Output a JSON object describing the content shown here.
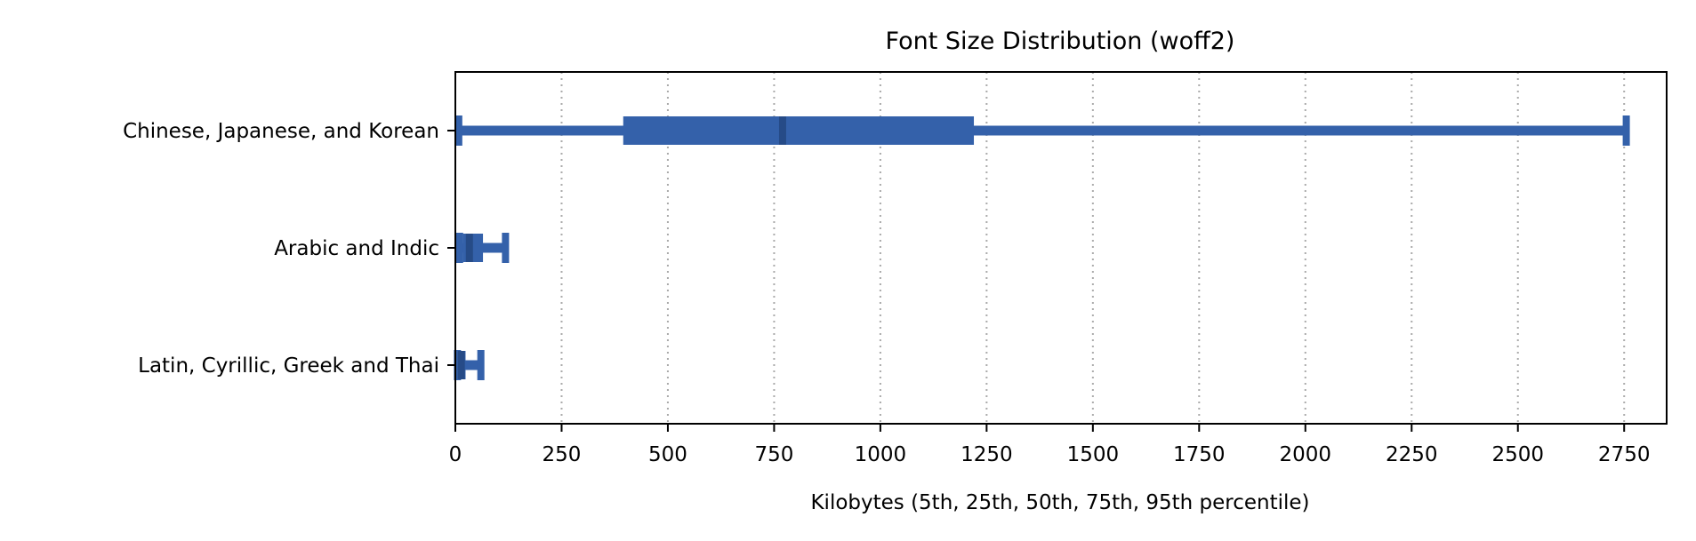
{
  "chart_data": {
    "type": "box",
    "title": "Font Size Distribution (woff2)",
    "xlabel": "Kilobytes (5th, 25th, 50th, 75th, 95th percentile)",
    "ylabel": "",
    "xlim": [
      0,
      2850
    ],
    "xticks": [
      0,
      250,
      500,
      750,
      1000,
      1250,
      1500,
      1750,
      2000,
      2250,
      2500,
      2750
    ],
    "grid": "vertical dotted",
    "colors": {
      "box": "#3461aa",
      "median": "#264b87",
      "grid": "#aaaaaa"
    },
    "categories": [
      "Chinese, Japanese, and Korean",
      "Arabic and Indic",
      "Latin, Cyrillic, Greek and Thai"
    ],
    "series": [
      {
        "category": "Chinese, Japanese, and Korean",
        "p5": 8,
        "p25": 395,
        "p50": 770,
        "p75": 1220,
        "p95": 2755
      },
      {
        "category": "Arabic and Indic",
        "p5": 10,
        "p25": 18,
        "p50": 33,
        "p75": 65,
        "p95": 118
      },
      {
        "category": "Latin, Cyrillic, Greek and Thai",
        "p5": 5,
        "p25": 8,
        "p50": 14,
        "p75": 24,
        "p95": 60
      }
    ]
  }
}
